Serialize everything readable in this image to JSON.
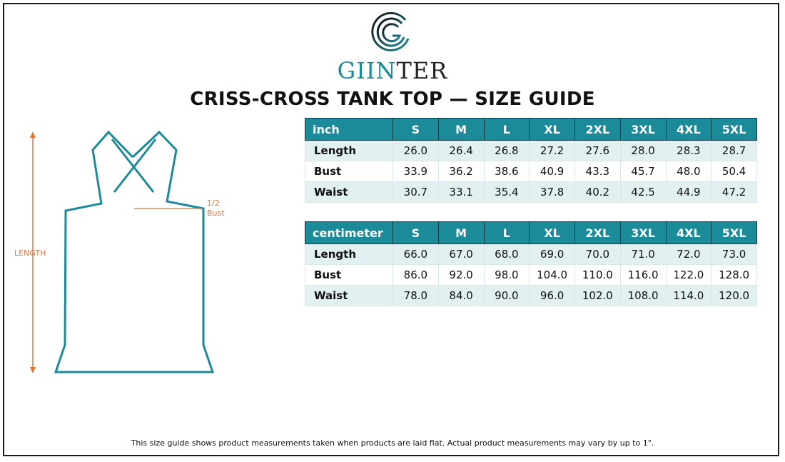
{
  "brand": {
    "name_teal": "GIIN",
    "name_dark": "TER"
  },
  "title": "CRISS-CROSS TANK TOP — SIZE GUIDE",
  "diagram": {
    "length_label": "LENGTH",
    "bust_label_line1": "1/2",
    "bust_label_line2": "Bust"
  },
  "colors": {
    "teal": "#1b8a99",
    "measure": "#d9783b",
    "row_shade": "#e2f0f2"
  },
  "tables": [
    {
      "unit": "inch",
      "sizes": [
        "S",
        "M",
        "L",
        "XL",
        "2XL",
        "3XL",
        "4XL",
        "5XL"
      ],
      "rows": [
        {
          "label": "Length",
          "values": [
            "26.0",
            "26.4",
            "26.8",
            "27.2",
            "27.6",
            "28.0",
            "28.3",
            "28.7"
          ]
        },
        {
          "label": "Bust",
          "values": [
            "33.9",
            "36.2",
            "38.6",
            "40.9",
            "43.3",
            "45.7",
            "48.0",
            "50.4"
          ]
        },
        {
          "label": "Waist",
          "values": [
            "30.7",
            "33.1",
            "35.4",
            "37.8",
            "40.2",
            "42.5",
            "44.9",
            "47.2"
          ]
        }
      ]
    },
    {
      "unit": "centimeter",
      "sizes": [
        "S",
        "M",
        "L",
        "XL",
        "2XL",
        "3XL",
        "4XL",
        "5XL"
      ],
      "rows": [
        {
          "label": "Length",
          "values": [
            "66.0",
            "67.0",
            "68.0",
            "69.0",
            "70.0",
            "71.0",
            "72.0",
            "73.0"
          ]
        },
        {
          "label": "Bust",
          "values": [
            "86.0",
            "92.0",
            "98.0",
            "104.0",
            "110.0",
            "116.0",
            "122.0",
            "128.0"
          ]
        },
        {
          "label": "Waist",
          "values": [
            "78.0",
            "84.0",
            "90.0",
            "96.0",
            "102.0",
            "108.0",
            "114.0",
            "120.0"
          ]
        }
      ]
    }
  ],
  "footnote": "This size guide shows product measurements taken when products are laid flat. Actual product measurements may vary by up to 1\"."
}
